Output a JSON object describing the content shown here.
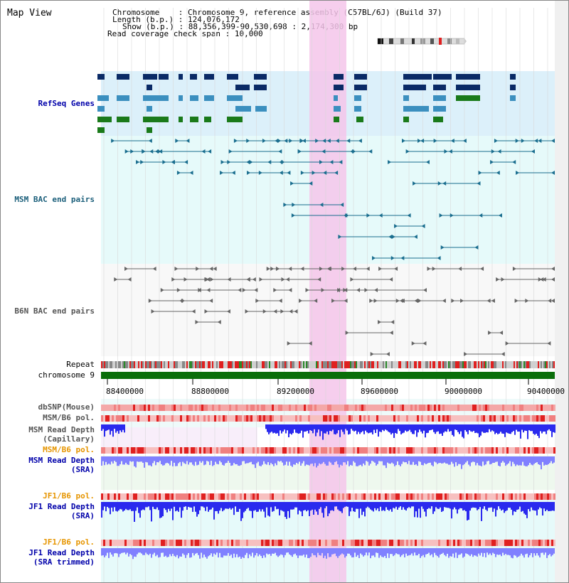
{
  "view_title": "Map View",
  "info": {
    "chromosome_label": "Chromosome",
    "chromosome_value": "Chromosome 9, reference assembly (C57BL/6J) (Build 37)",
    "length_label": "Length (b.p.)",
    "length_value": "124,076,172",
    "show_label": "Show (b.p.)",
    "show_value": "88,356,399-90,530,698 : 2,174,300 bp",
    "coverage_label": "Read coverage check span",
    "coverage_value": "10,000"
  },
  "tracks": {
    "refseq": "RefSeq Genes",
    "msm_bac": "MSM BAC end pairs",
    "b6n_bac": "B6N BAC end pairs",
    "repeat": "Repeat",
    "chromosome": "chromosome 9",
    "dbsnp": "dbSNP(Mouse)",
    "msm_b6_pol_1": "MSM/B6 pol.",
    "msm_depth_cap_1": "MSM Read Depth",
    "msm_depth_cap_2": "(Capillary)",
    "msm_b6_pol_2": "MSM/B6 pol.",
    "msm_depth_sra_1": "MSM Read Depth",
    "msm_depth_sra_2": "(SRA)",
    "jf1_b6_pol_1": "JF1/B6 pol.",
    "jf1_depth_sra_1": "JF1 Read Depth",
    "jf1_depth_sra_2": "(SRA)",
    "jf1_b6_pol_2": "JF1/B6 pol.",
    "jf1_depth_trim_1": "JF1 Read Depth",
    "jf1_depth_trim_2": "(SRA trimmed)"
  },
  "axis_ticks": [
    "88400000",
    "88800000",
    "89200000",
    "89600000",
    "90000000",
    "90400000"
  ],
  "colors": {
    "highlight": "#f5c6ea",
    "refseq_bg": "#dcf0fa",
    "msm_bg": "#e6fafa",
    "b6n_bg": "#f8f8f8",
    "msm_cap_bg": "#f8eefa",
    "msm_sra_bg": "#eef8ee",
    "jf1_bg": "#e6fafa",
    "gene_dark": "#0a2a66",
    "gene_mid": "#3b8fbf",
    "gene_green": "#1a7a1a",
    "chromosome_bar": "#0a6e0a",
    "depth_blue": "#2a2aee",
    "depth_light": "#8080ff"
  }
}
